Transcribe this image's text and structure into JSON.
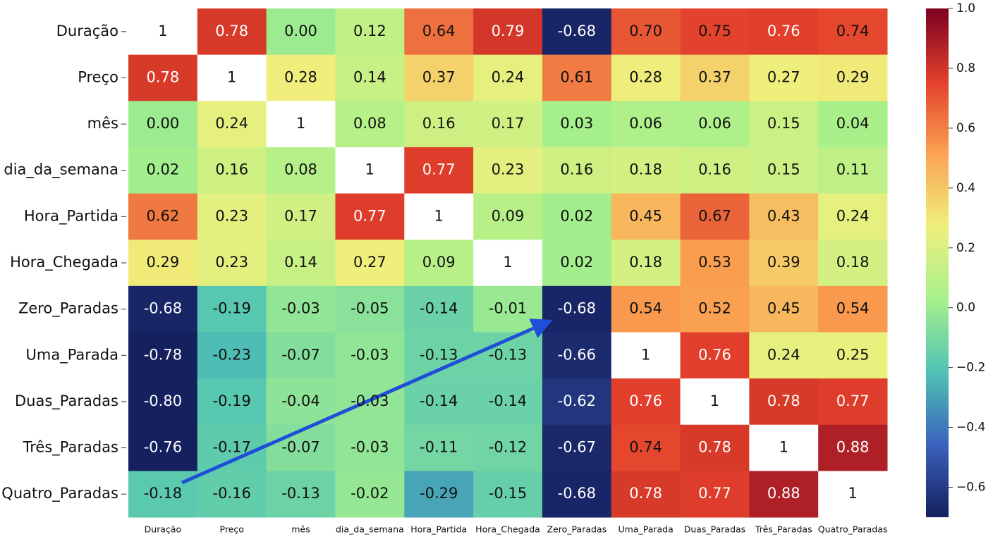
{
  "chart_data": {
    "type": "heatmap",
    "categories": [
      "Duração",
      "Preço",
      "mês",
      "dia_da_semana",
      "Hora_Partida",
      "Hora_Chegada",
      "Zero_Paradas",
      "Uma_Parada",
      "Duas_Paradas",
      "Três_Paradas",
      "Quatro_Paradas"
    ],
    "values": [
      [
        1,
        0.78,
        0.0,
        0.12,
        0.64,
        0.79,
        -0.68,
        0.7,
        0.75,
        0.76,
        0.74
      ],
      [
        0.78,
        1,
        0.28,
        0.14,
        0.37,
        0.24,
        0.61,
        0.28,
        0.37,
        0.27,
        0.29
      ],
      [
        0.0,
        0.24,
        1,
        0.08,
        0.16,
        0.17,
        0.03,
        0.06,
        0.06,
        0.15,
        0.04
      ],
      [
        0.02,
        0.16,
        0.08,
        1,
        0.77,
        0.23,
        0.16,
        0.18,
        0.16,
        0.15,
        0.11
      ],
      [
        0.62,
        0.23,
        0.17,
        0.77,
        1,
        0.09,
        0.02,
        0.45,
        0.67,
        0.43,
        0.24
      ],
      [
        0.29,
        0.23,
        0.14,
        0.27,
        0.09,
        1,
        0.02,
        0.18,
        0.53,
        0.39,
        0.18
      ],
      [
        -0.68,
        -0.19,
        -0.03,
        -0.05,
        -0.14,
        -0.01,
        -0.68,
        0.54,
        0.52,
        0.45,
        0.54
      ],
      [
        -0.78,
        -0.23,
        -0.07,
        -0.03,
        -0.13,
        -0.13,
        -0.66,
        1,
        0.76,
        0.24,
        0.25
      ],
      [
        -0.8,
        -0.19,
        -0.04,
        -0.03,
        -0.14,
        -0.14,
        -0.62,
        0.76,
        1,
        0.78,
        0.77
      ],
      [
        -0.76,
        -0.17,
        -0.07,
        -0.03,
        -0.11,
        -0.12,
        -0.67,
        0.74,
        0.78,
        1,
        0.88
      ],
      [
        -0.18,
        -0.16,
        -0.13,
        -0.02,
        -0.29,
        -0.15,
        -0.68,
        0.78,
        0.77,
        0.88,
        1
      ]
    ],
    "value_labels": [
      [
        "1",
        "0.78",
        "0.00",
        "0.12",
        "0.64",
        "0.79",
        "-0.68",
        "0.70",
        "0.75",
        "0.76",
        "0.74"
      ],
      [
        "0.78",
        "1",
        "0.28",
        "0.14",
        "0.37",
        "0.24",
        "0.61",
        "0.28",
        "0.37",
        "0.27",
        "0.29"
      ],
      [
        "0.00",
        "0.24",
        "1",
        "0.08",
        "0.16",
        "0.17",
        "0.03",
        "0.06",
        "0.06",
        "0.15",
        "0.04"
      ],
      [
        "0.02",
        "0.16",
        "0.08",
        "1",
        "0.77",
        "0.23",
        "0.16",
        "0.18",
        "0.16",
        "0.15",
        "0.11"
      ],
      [
        "0.62",
        "0.23",
        "0.17",
        "0.77",
        "1",
        "0.09",
        "0.02",
        "0.45",
        "0.67",
        "0.43",
        "0.24"
      ],
      [
        "0.29",
        "0.23",
        "0.14",
        "0.27",
        "0.09",
        "1",
        "0.02",
        "0.18",
        "0.53",
        "0.39",
        "0.18"
      ],
      [
        "-0.68",
        "-0.19",
        "-0.03",
        "-0.05",
        "-0.14",
        "-0.01",
        "-0.68",
        "0.54",
        "0.52",
        "0.45",
        "0.54"
      ],
      [
        "-0.78",
        "-0.23",
        "-0.07",
        "-0.03",
        "-0.13",
        "-0.13",
        "-0.66",
        "1",
        "0.76",
        "0.24",
        "0.25"
      ],
      [
        "-0.80",
        "-0.19",
        "-0.04",
        "-0.03",
        "-0.14",
        "-0.14",
        "-0.62",
        "0.76",
        "1",
        "0.78",
        "0.77"
      ],
      [
        "-0.76",
        "-0.17",
        "-0.07",
        "-0.03",
        "-0.11",
        "-0.12",
        "-0.67",
        "0.74",
        "0.78",
        "1",
        "0.88"
      ],
      [
        "-0.18",
        "-0.16",
        "-0.13",
        "-0.02",
        "-0.29",
        "-0.15",
        "-0.68",
        "0.78",
        "0.77",
        "0.88",
        "1"
      ]
    ],
    "zlim": [
      -0.7,
      1
    ],
    "zticks": [
      {
        "value": -0.6,
        "label": "−0.6"
      },
      {
        "value": -0.4,
        "label": "−0.4"
      },
      {
        "value": -0.2,
        "label": "−0.2"
      },
      {
        "value": 0,
        "label": "0.0"
      },
      0.2,
      0.4,
      0.6,
      0.8,
      {
        "value": 1,
        "label": "1.0"
      }
    ],
    "colorscale": [
      "#15205e",
      "#3a62bd",
      "#4fc3b4",
      "#a6f08c",
      "#eff07c",
      "#fba352",
      "#e2402b",
      "#7c0020"
    ],
    "diagonal_color": "#ffffff"
  }
}
